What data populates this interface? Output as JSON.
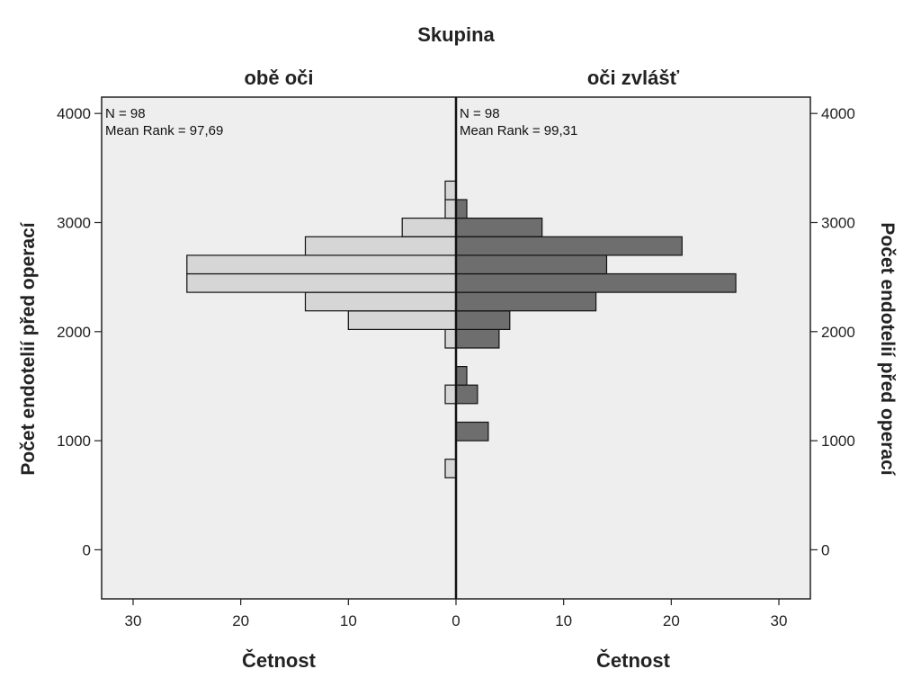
{
  "chart_data": {
    "type": "bar",
    "orientation": "population-pyramid",
    "title": "Skupina",
    "ylabel": "Počet endotelií před operací",
    "xlabel_left": "Četnost",
    "xlabel_right": "Četnost",
    "ylim": [
      -450,
      4150
    ],
    "xlim": [
      0,
      30
    ],
    "y_ticks": [
      0,
      1000,
      2000,
      3000,
      4000
    ],
    "x_ticks": [
      30,
      20,
      10,
      0,
      10,
      20,
      30
    ],
    "bin_width": 170,
    "colors": {
      "left": "#d6d6d6",
      "right": "#6e6e6e",
      "plot_bg": "#eeeeee"
    },
    "series": [
      {
        "name": "obě oči",
        "stats": [
          "N = 98",
          "Mean Rank = 97,69"
        ],
        "bins": [
          {
            "y": 745,
            "count": 1
          },
          {
            "y": 1425,
            "count": 1
          },
          {
            "y": 1935,
            "count": 1
          },
          {
            "y": 2105,
            "count": 10
          },
          {
            "y": 2275,
            "count": 14
          },
          {
            "y": 2445,
            "count": 25
          },
          {
            "y": 2615,
            "count": 25
          },
          {
            "y": 2785,
            "count": 14
          },
          {
            "y": 2955,
            "count": 5
          },
          {
            "y": 3125,
            "count": 1
          },
          {
            "y": 3295,
            "count": 1
          }
        ]
      },
      {
        "name": "oči zvlášť",
        "stats": [
          "N = 98",
          "Mean Rank = 99,31"
        ],
        "bins": [
          {
            "y": 1085,
            "count": 3
          },
          {
            "y": 1425,
            "count": 2
          },
          {
            "y": 1595,
            "count": 1
          },
          {
            "y": 1935,
            "count": 4
          },
          {
            "y": 2105,
            "count": 5
          },
          {
            "y": 2275,
            "count": 13
          },
          {
            "y": 2445,
            "count": 26
          },
          {
            "y": 2615,
            "count": 14
          },
          {
            "y": 2785,
            "count": 21
          },
          {
            "y": 2955,
            "count": 8
          },
          {
            "y": 3125,
            "count": 1
          }
        ]
      }
    ]
  }
}
